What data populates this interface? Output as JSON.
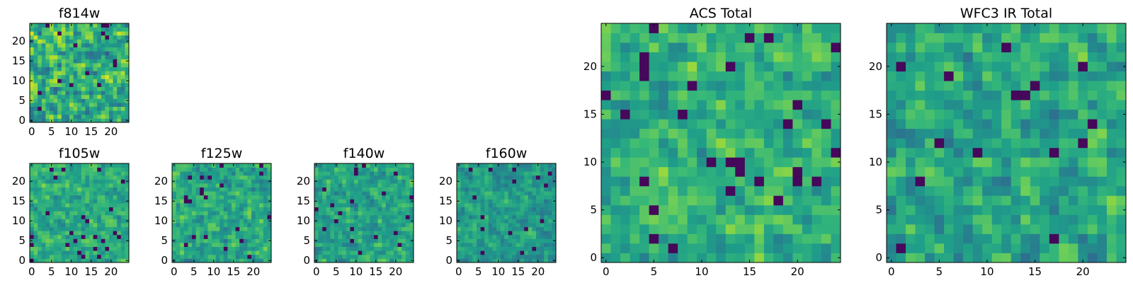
{
  "colormap": "viridis",
  "colormap_stops": [
    "#440154",
    "#482878",
    "#3e4989",
    "#31688e",
    "#26828e",
    "#1f9e89",
    "#35b779",
    "#6ece58",
    "#b5de2b",
    "#fde725"
  ],
  "chart_data": [
    {
      "type": "heatmap",
      "title": "f814w",
      "grid": [
        25,
        25
      ],
      "xlim": [
        0,
        24
      ],
      "ylim": [
        0,
        24
      ],
      "xticks": [
        0,
        5,
        10,
        15,
        20
      ],
      "yticks": [
        0,
        5,
        10,
        15,
        20
      ],
      "xtick_labels": [
        "0",
        "5",
        "10",
        "15",
        "20"
      ],
      "ytick_labels": [
        "0",
        "5",
        "10",
        "15",
        "20"
      ],
      "value_range": [
        0,
        1
      ],
      "mean_level": 0.62,
      "noise": 0.32,
      "seed": 11
    },
    {
      "type": "heatmap",
      "title": "f105w",
      "grid": [
        25,
        25
      ],
      "xlim": [
        0,
        24
      ],
      "ylim": [
        0,
        24
      ],
      "xticks": [
        0,
        5,
        10,
        15,
        20
      ],
      "yticks": [
        0,
        5,
        10,
        15,
        20
      ],
      "xtick_labels": [
        "0",
        "5",
        "10",
        "15",
        "20"
      ],
      "ytick_labels": [
        "0",
        "5",
        "10",
        "15",
        "20"
      ],
      "value_range": [
        0,
        1
      ],
      "mean_level": 0.62,
      "noise": 0.2,
      "seed": 23
    },
    {
      "type": "heatmap",
      "title": "f125w",
      "grid": [
        25,
        25
      ],
      "xlim": [
        0,
        24
      ],
      "ylim": [
        0,
        24
      ],
      "xticks": [
        0,
        5,
        10,
        15,
        20
      ],
      "yticks": [
        0,
        5,
        10,
        15,
        20
      ],
      "xtick_labels": [
        "0",
        "5",
        "10",
        "15",
        "20"
      ],
      "ytick_labels": [
        "0",
        "5",
        "10",
        "15",
        "20"
      ],
      "value_range": [
        0,
        1
      ],
      "mean_level": 0.6,
      "noise": 0.22,
      "seed": 37
    },
    {
      "type": "heatmap",
      "title": "f140w",
      "grid": [
        25,
        25
      ],
      "xlim": [
        0,
        24
      ],
      "ylim": [
        0,
        24
      ],
      "xticks": [
        0,
        5,
        10,
        15,
        20
      ],
      "yticks": [
        0,
        5,
        10,
        15,
        20
      ],
      "xtick_labels": [
        "0",
        "5",
        "10",
        "15",
        "20"
      ],
      "ytick_labels": [
        "0",
        "5",
        "10",
        "15",
        "20"
      ],
      "value_range": [
        0,
        1
      ],
      "mean_level": 0.58,
      "noise": 0.2,
      "seed": 41
    },
    {
      "type": "heatmap",
      "title": "f160w",
      "grid": [
        25,
        25
      ],
      "xlim": [
        0,
        24
      ],
      "ylim": [
        0,
        24
      ],
      "xticks": [
        0,
        5,
        10,
        15,
        20
      ],
      "yticks": [
        0,
        5,
        10,
        15,
        20
      ],
      "xtick_labels": [
        "0",
        "5",
        "10",
        "15",
        "20"
      ],
      "ytick_labels": [
        "0",
        "5",
        "10",
        "15",
        "20"
      ],
      "value_range": [
        0,
        1
      ],
      "mean_level": 0.55,
      "noise": 0.18,
      "seed": 53
    },
    {
      "type": "heatmap",
      "title": "ACS Total",
      "grid": [
        25,
        25
      ],
      "xlim": [
        0,
        24
      ],
      "ylim": [
        0,
        24
      ],
      "xticks": [
        0,
        5,
        10,
        15,
        20
      ],
      "yticks": [
        0,
        5,
        10,
        15,
        20
      ],
      "xtick_labels": [
        "0",
        "5",
        "10",
        "15",
        "20"
      ],
      "ytick_labels": [
        "0",
        "5",
        "10",
        "15",
        "20"
      ],
      "value_range": [
        0,
        1
      ],
      "mean_level": 0.64,
      "noise": 0.22,
      "seed": 67
    },
    {
      "type": "heatmap",
      "title": "WFC3 IR Total",
      "grid": [
        25,
        25
      ],
      "xlim": [
        0,
        24
      ],
      "ylim": [
        0,
        24
      ],
      "xticks": [
        0,
        5,
        10,
        15,
        20
      ],
      "yticks": [
        0,
        5,
        10,
        15,
        20
      ],
      "xtick_labels": [
        "0",
        "5",
        "10",
        "15",
        "20"
      ],
      "ytick_labels": [
        "0",
        "5",
        "10",
        "15",
        "20"
      ],
      "value_range": [
        0,
        1
      ],
      "mean_level": 0.6,
      "noise": 0.24,
      "seed": 79
    }
  ]
}
